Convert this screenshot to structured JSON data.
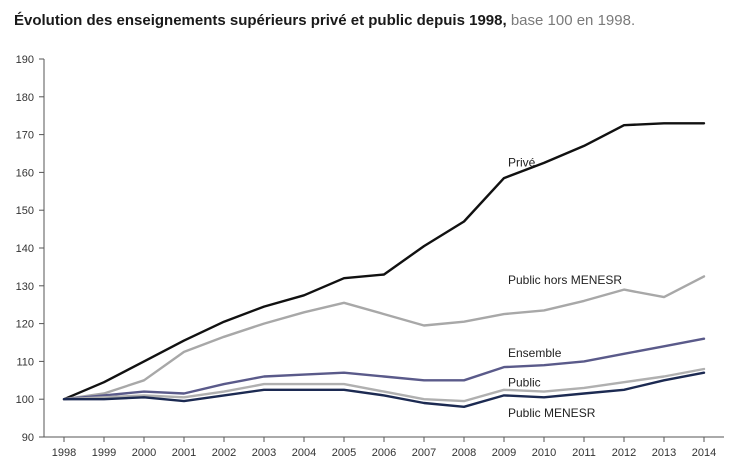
{
  "title": {
    "main": "Évolution des enseignements supérieurs privé et public depuis 1998,",
    "sub": "base 100 en 1998."
  },
  "chart_data": {
    "type": "line",
    "x": [
      "1998",
      "1999",
      "2000",
      "2001",
      "2002",
      "2003",
      "2004",
      "2005",
      "2006",
      "2007",
      "2008",
      "2009",
      "2010",
      "2011",
      "2012",
      "2013",
      "2014"
    ],
    "ylim": [
      90,
      190
    ],
    "yticks": [
      90,
      100,
      110,
      120,
      130,
      140,
      150,
      160,
      170,
      180,
      190
    ],
    "grid": false,
    "legend": "inline labels",
    "series": [
      {
        "name": "Privé",
        "color": "#111111",
        "values": [
          100,
          104.5,
          110,
          115.5,
          120.5,
          124.5,
          127.5,
          132,
          133,
          140.5,
          147,
          158.5,
          162.5,
          167,
          172.5,
          173,
          173
        ]
      },
      {
        "name": "Public hors MENESR",
        "color": "#a8a8a8",
        "values": [
          100,
          101.5,
          105,
          112.5,
          116.5,
          120,
          123,
          125.5,
          122.5,
          119.5,
          120.5,
          122.5,
          123.5,
          126,
          129,
          127,
          132.5
        ]
      },
      {
        "name": "Ensemble",
        "color": "#5a5a8a",
        "values": [
          100,
          101,
          102,
          101.5,
          104,
          106,
          106.5,
          107,
          106,
          105,
          105,
          108.5,
          109,
          110,
          112,
          114,
          116
        ]
      },
      {
        "name": "Public",
        "color": "#b0b0b0",
        "values": [
          100,
          100.5,
          101,
          100.5,
          102,
          104,
          104,
          104,
          102,
          100,
          99.5,
          102.5,
          102,
          103,
          104.5,
          106,
          108
        ]
      },
      {
        "name": "Public MENESR",
        "color": "#1c2a52",
        "values": [
          100,
          100,
          100.5,
          99.5,
          101,
          102.5,
          102.5,
          102.5,
          101,
          99,
          98,
          101,
          100.5,
          101.5,
          102.5,
          105,
          107
        ]
      }
    ]
  }
}
